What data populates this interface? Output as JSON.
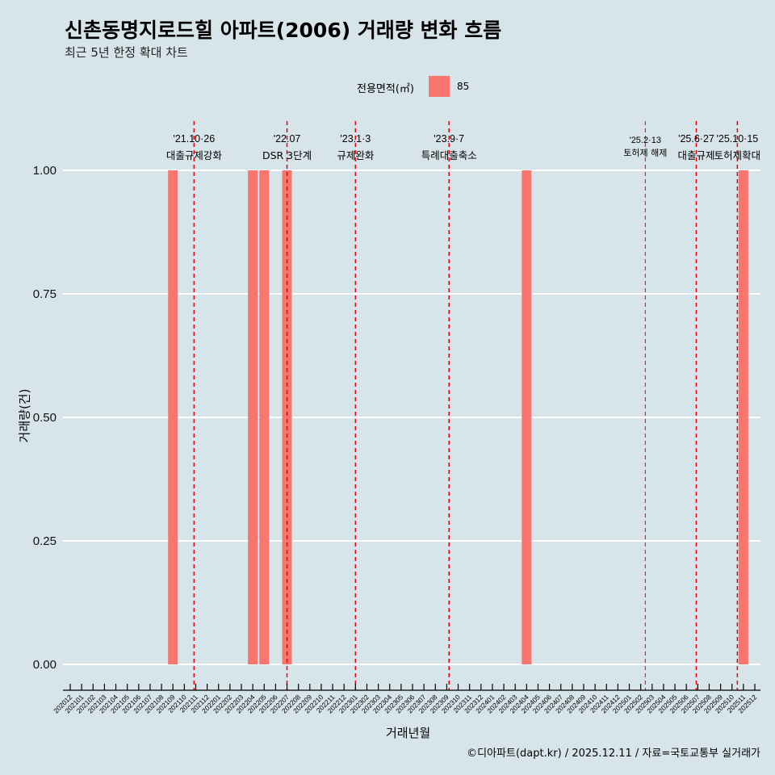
{
  "header": {
    "title": "신촌동명지로드힐 아파트(2006) 거래량 변화 흐름",
    "subtitle": "최근 5년 한정 확대 차트"
  },
  "legend": {
    "title": "전용면적(㎡)",
    "items": [
      {
        "label": "85",
        "color": "#f8766d"
      }
    ]
  },
  "caption": "©디아파트(dapt.kr) / 2025.12.11 / 자료=국토교통부 실거래가",
  "chart_data": {
    "type": "bar",
    "title": "신촌동명지로드힐 아파트(2006) 거래량 변화 흐름",
    "xlabel": "거래년월",
    "ylabel": "거래량(건)",
    "ylim": [
      0,
      1
    ],
    "yticks": [
      "0.00",
      "0.25",
      "0.50",
      "0.75",
      "1.00"
    ],
    "categories": [
      "202012",
      "202101",
      "202102",
      "202103",
      "202104",
      "202105",
      "202106",
      "202107",
      "202108",
      "202109",
      "202110",
      "202111",
      "202112",
      "202201",
      "202202",
      "202203",
      "202204",
      "202205",
      "202206",
      "202207",
      "202208",
      "202209",
      "202210",
      "202211",
      "202212",
      "202301",
      "202302",
      "202303",
      "202304",
      "202305",
      "202306",
      "202307",
      "202308",
      "202309",
      "202310",
      "202311",
      "202312",
      "202401",
      "202402",
      "202403",
      "202404",
      "202405",
      "202406",
      "202407",
      "202408",
      "202409",
      "202410",
      "202411",
      "202412",
      "202501",
      "202502",
      "202503",
      "202504",
      "202505",
      "202506",
      "202507",
      "202508",
      "202509",
      "202510",
      "202511",
      "202512"
    ],
    "series": [
      {
        "name": "85",
        "color": "#f8766d",
        "points": [
          {
            "x": "202109",
            "y": 1
          },
          {
            "x": "202204",
            "y": 1
          },
          {
            "x": "202205",
            "y": 1
          },
          {
            "x": "202207",
            "y": 1
          },
          {
            "x": "202404",
            "y": 1
          },
          {
            "x": "202511",
            "y": 1
          }
        ]
      }
    ],
    "annotations": [
      {
        "x": "202110",
        "offset": 0.85,
        "date": "'21.10·26",
        "label": "대출규제강화",
        "small": false
      },
      {
        "x": "202207",
        "offset": 0,
        "date": "'22.07",
        "label": "DSR 3단계",
        "small": false
      },
      {
        "x": "202301",
        "offset": 0,
        "date": "'23.1·3",
        "label": "규제완화",
        "small": false
      },
      {
        "x": "202309",
        "offset": 0.2,
        "date": "'23.9·7",
        "label": "특례대출축소",
        "small": false
      },
      {
        "x": "202502",
        "offset": 0.4,
        "date": "'25.2·13",
        "label": "토허제 해제",
        "small": true
      },
      {
        "x": "202506",
        "offset": 0.87,
        "date": "'25.6·27",
        "label": "대출규제",
        "small": false
      },
      {
        "x": "202510",
        "offset": 0.47,
        "date": "'25.10·15",
        "label": "토허제확대",
        "small": false
      }
    ]
  }
}
